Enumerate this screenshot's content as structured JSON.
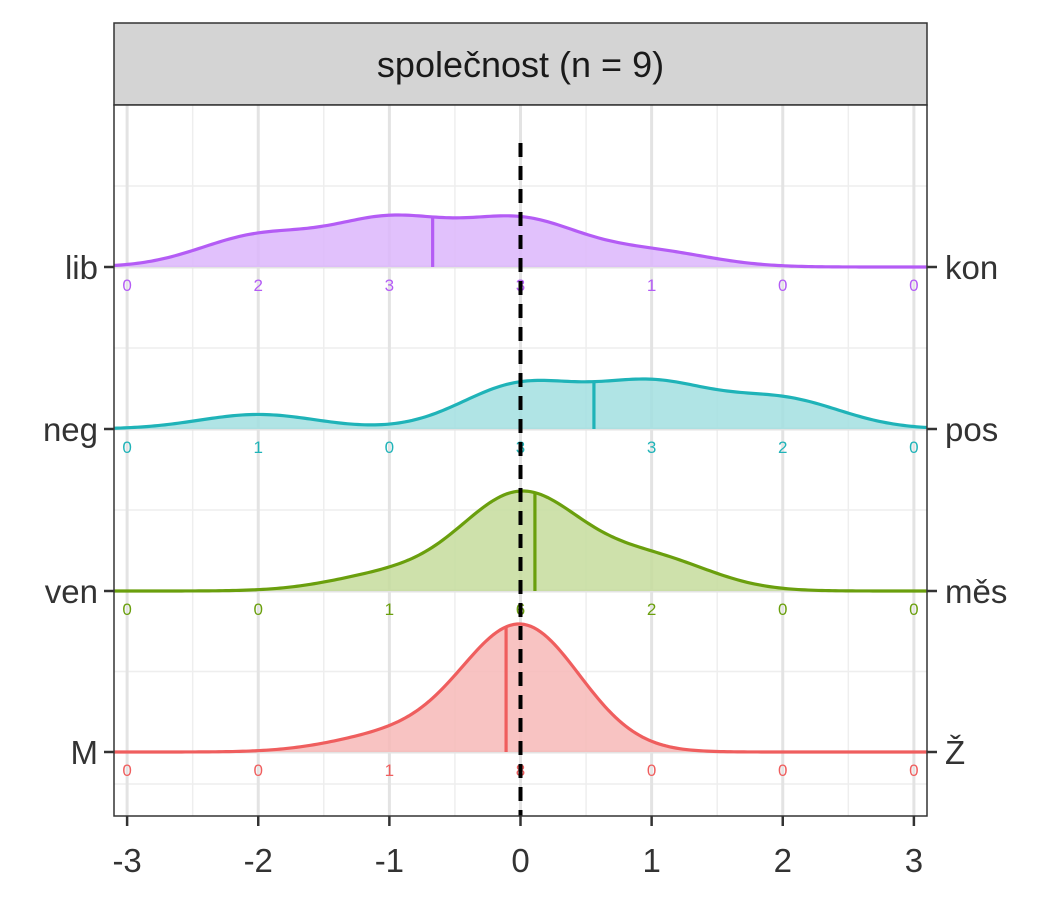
{
  "chart_data": {
    "type": "ridgeline",
    "panel_title": "společnost (n = 9)",
    "x_ticks": [
      "-3",
      "-2",
      "-1",
      "0",
      "1",
      "2",
      "3"
    ],
    "x_values": [
      -3,
      -2,
      -1,
      0,
      1,
      2,
      3
    ],
    "xlim": [
      -3.1,
      3.1
    ],
    "reference_line_x": 0,
    "grid": true,
    "series": [
      {
        "left_label": "lib",
        "right_label": "kon",
        "color": "#b45cf5",
        "fill": "#dcb6fb",
        "counts": [
          0,
          2,
          3,
          3,
          1,
          0,
          0
        ],
        "count_labels": [
          "0",
          "2",
          "3",
          "3",
          "1",
          "0",
          "0"
        ],
        "mean": -0.67,
        "density_heights": [
          0.0,
          0.6,
          1.0,
          1.0,
          0.45,
          0.0,
          0.0
        ]
      },
      {
        "left_label": "neg",
        "right_label": "pos",
        "color": "#1fb3b8",
        "fill": "#a2dfe1",
        "counts": [
          0,
          1,
          0,
          3,
          3,
          2,
          0
        ],
        "count_labels": [
          "0",
          "1",
          "0",
          "3",
          "3",
          "2",
          "0"
        ],
        "mean": 0.56,
        "density_heights": [
          0.0,
          0.32,
          0.0,
          1.0,
          1.0,
          0.7,
          0.0
        ]
      },
      {
        "left_label": "ven",
        "right_label": "měs",
        "color": "#6a9f0d",
        "fill": "#c5dc9c",
        "counts": [
          0,
          0,
          1,
          6,
          2,
          0,
          0
        ],
        "count_labels": [
          "0",
          "0",
          "1",
          "6",
          "2",
          "0",
          "0"
        ],
        "mean": 0.11,
        "density_heights": [
          0.0,
          0.0,
          0.16,
          1.0,
          0.36,
          0.0,
          0.0
        ]
      },
      {
        "left_label": "M",
        "right_label": "Ž",
        "color": "#ef5e5e",
        "fill": "#f7b9b7",
        "counts": [
          0,
          0,
          1,
          8,
          0,
          0,
          0
        ],
        "count_labels": [
          "0",
          "0",
          "1",
          "8",
          "0",
          "0",
          "0"
        ],
        "mean": -0.11,
        "density_heights": [
          0.0,
          0.0,
          0.18,
          1.0,
          0.0,
          0.0,
          0.0
        ]
      }
    ]
  }
}
